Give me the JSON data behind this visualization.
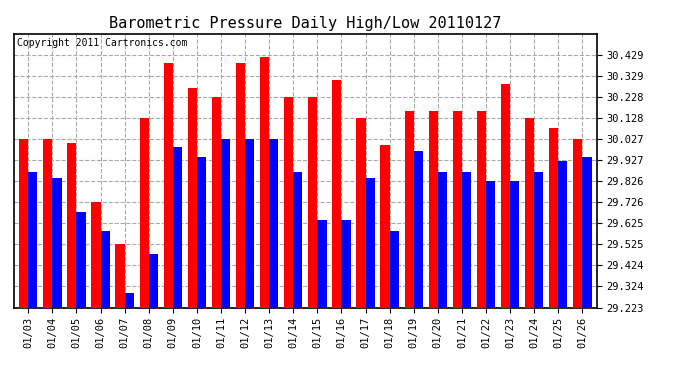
{
  "title": "Barometric Pressure Daily High/Low 20110127",
  "copyright": "Copyright 2011 Cartronics.com",
  "dates": [
    "01/03",
    "01/04",
    "01/05",
    "01/06",
    "01/07",
    "01/08",
    "01/09",
    "01/10",
    "01/11",
    "01/12",
    "01/13",
    "01/14",
    "01/15",
    "01/16",
    "01/17",
    "01/18",
    "01/19",
    "01/20",
    "01/21",
    "01/22",
    "01/23",
    "01/24",
    "01/25",
    "01/26"
  ],
  "highs": [
    30.027,
    30.027,
    30.01,
    29.726,
    29.525,
    30.128,
    30.39,
    30.27,
    30.228,
    30.39,
    30.42,
    30.228,
    30.228,
    30.31,
    30.128,
    30.0,
    30.16,
    30.16,
    30.16,
    30.16,
    30.29,
    30.128,
    30.08,
    30.027
  ],
  "lows": [
    29.87,
    29.84,
    29.68,
    29.59,
    29.29,
    29.48,
    29.99,
    29.94,
    30.027,
    30.027,
    30.027,
    29.87,
    29.64,
    29.64,
    29.84,
    29.59,
    29.97,
    29.87,
    29.87,
    29.826,
    29.826,
    29.87,
    29.92,
    29.94
  ],
  "bar_width": 0.38,
  "ylim_min": 29.223,
  "ylim_max": 30.529,
  "yticks": [
    29.223,
    29.324,
    29.424,
    29.525,
    29.625,
    29.726,
    29.826,
    29.927,
    30.027,
    30.128,
    30.228,
    30.329,
    30.429
  ],
  "ytick_labels": [
    "29.223",
    "29.324",
    "29.424",
    "29.525",
    "29.625",
    "29.726",
    "29.826",
    "29.927",
    "30.027",
    "30.128",
    "30.228",
    "30.329",
    "30.429"
  ],
  "high_color": "#FF0000",
  "low_color": "#0000FF",
  "bg_color": "#FFFFFF",
  "grid_color": "#AAAAAA",
  "title_fontsize": 11,
  "copyright_fontsize": 7,
  "tick_fontsize": 7.5
}
